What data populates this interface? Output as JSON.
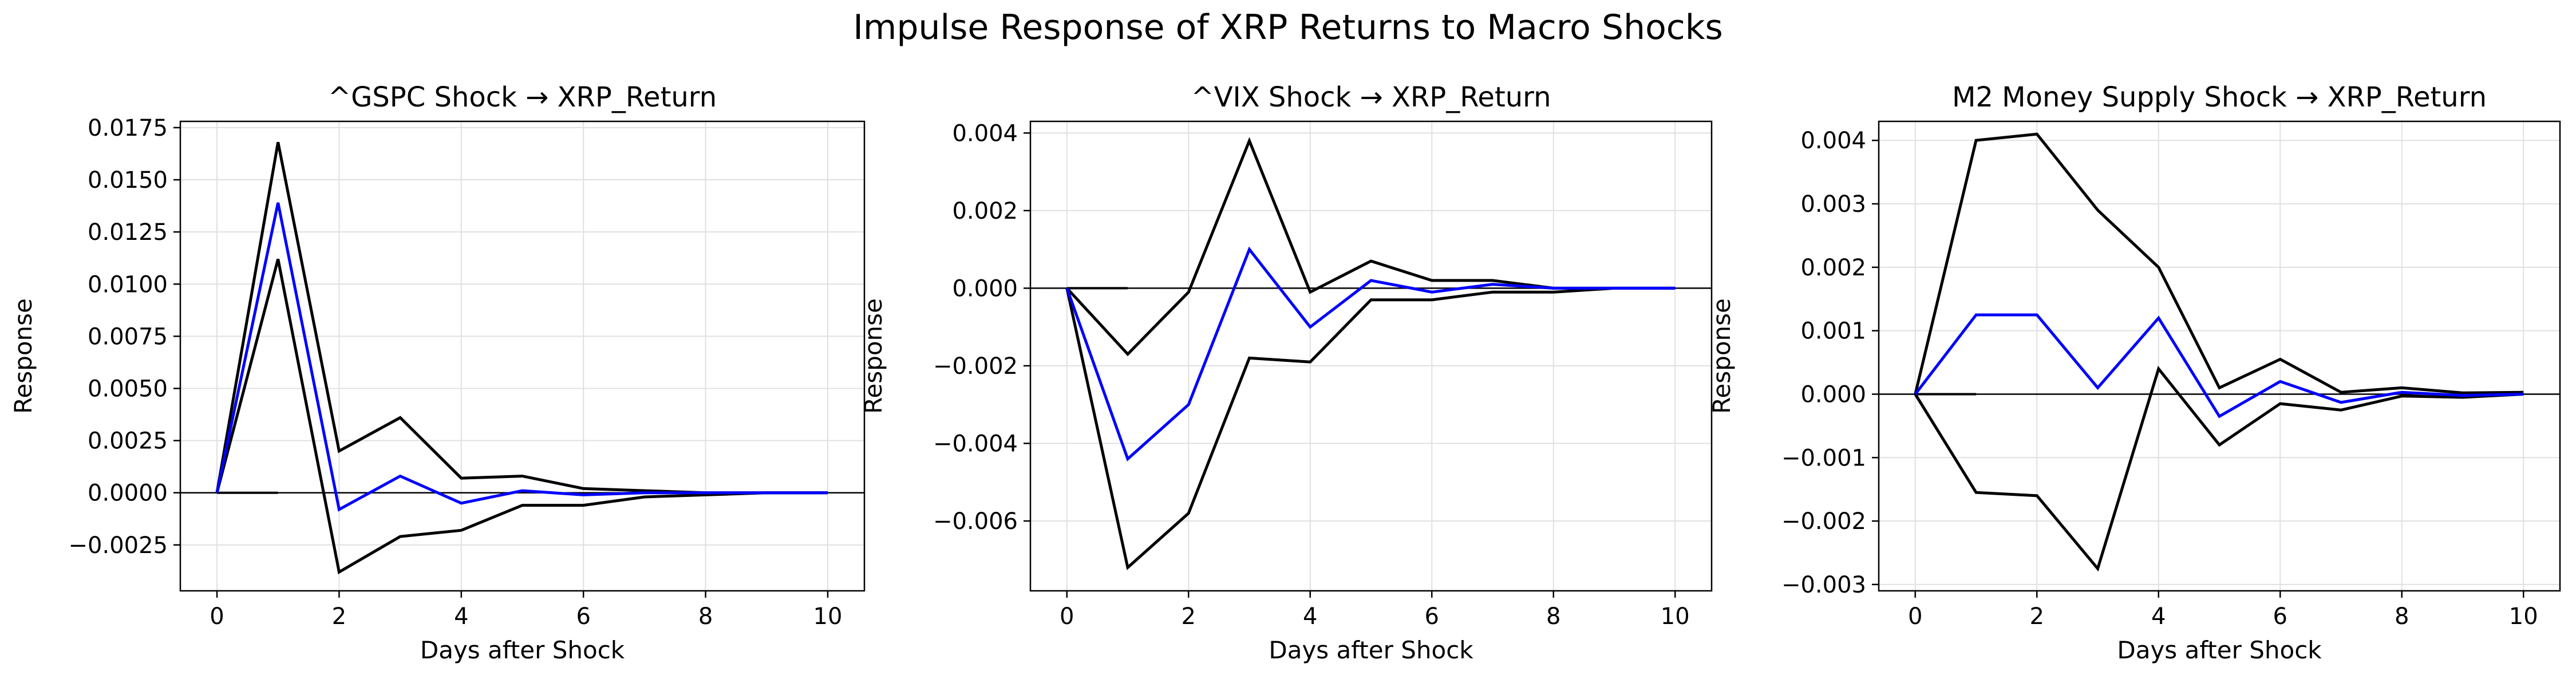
{
  "figure": {
    "suptitle": "Impulse Response of XRP Returns to Macro Shocks"
  },
  "colors": {
    "response": "#0000ff",
    "bounds": "#000000",
    "zero_line": "#000000",
    "grid": "#e0e0e0"
  },
  "chart_data": [
    {
      "type": "line",
      "title": "^GSPC Shock → XRP_Return",
      "xlabel": "Days after Shock",
      "ylabel": "Response",
      "xlim": [
        -0.6,
        10.6
      ],
      "ylim": [
        -0.0047,
        0.0178
      ],
      "xticks": [
        0,
        2,
        4,
        6,
        8,
        10
      ],
      "xtick_labels": [
        "0",
        "2",
        "4",
        "6",
        "8",
        "10"
      ],
      "yticks": [
        -0.0025,
        0.0,
        0.0025,
        0.005,
        0.0075,
        0.01,
        0.0125,
        0.015,
        0.0175
      ],
      "ytick_labels": [
        "−0.0025",
        "0.0000",
        "0.0025",
        "0.0050",
        "0.0075",
        "0.0100",
        "0.0125",
        "0.0150",
        "0.0175"
      ],
      "grid": true,
      "x": [
        0,
        1,
        2,
        3,
        4,
        5,
        6,
        7,
        8,
        9,
        10
      ],
      "series": [
        {
          "role": "response",
          "values": [
            0.0,
            0.0139,
            -0.0008,
            0.0008,
            -0.0005,
            0.0001,
            -0.0001,
            0.0,
            0.0,
            0.0,
            0.0
          ]
        },
        {
          "role": "upper",
          "values": [
            0.0,
            0.0168,
            0.002,
            0.0036,
            0.0007,
            0.0008,
            0.0002,
            0.0001,
            0.0,
            0.0,
            0.0
          ]
        },
        {
          "role": "lower",
          "values": [
            0.0,
            0.0112,
            -0.0038,
            -0.0021,
            -0.0018,
            -0.0006,
            -0.0006,
            -0.0002,
            -0.0001,
            0.0,
            0.0
          ]
        }
      ],
      "zero_line_x": [
        0,
        1
      ]
    },
    {
      "type": "line",
      "title": "^VIX Shock → XRP_Return",
      "xlabel": "Days after Shock",
      "ylabel": "Response",
      "xlim": [
        -0.6,
        10.6
      ],
      "ylim": [
        -0.0078,
        0.0043
      ],
      "xticks": [
        0,
        2,
        4,
        6,
        8,
        10
      ],
      "xtick_labels": [
        "0",
        "2",
        "4",
        "6",
        "8",
        "10"
      ],
      "yticks": [
        -0.006,
        -0.004,
        -0.002,
        0.0,
        0.002,
        0.004
      ],
      "ytick_labels": [
        "−0.006",
        "−0.004",
        "−0.002",
        "0.000",
        "0.002",
        "0.004"
      ],
      "grid": true,
      "x": [
        0,
        1,
        2,
        3,
        4,
        5,
        6,
        7,
        8,
        9,
        10
      ],
      "series": [
        {
          "role": "response",
          "values": [
            0.0,
            -0.0044,
            -0.003,
            0.001,
            -0.001,
            0.0002,
            -0.0001,
            0.0001,
            0.0,
            0.0,
            0.0
          ]
        },
        {
          "role": "upper",
          "values": [
            0.0,
            -0.0017,
            -0.0001,
            0.0038,
            -0.0001,
            0.0007,
            0.0002,
            0.0002,
            0.0,
            0.0,
            0.0
          ]
        },
        {
          "role": "lower",
          "values": [
            0.0,
            -0.0072,
            -0.0058,
            -0.0018,
            -0.0019,
            -0.0003,
            -0.0003,
            -0.0001,
            -0.0001,
            0.0,
            0.0
          ]
        }
      ],
      "zero_line_x": [
        0,
        1
      ]
    },
    {
      "type": "line",
      "title": "M2 Money Supply Shock → XRP_Return",
      "xlabel": "Days after Shock",
      "ylabel": "Response",
      "xlim": [
        -0.6,
        10.6
      ],
      "ylim": [
        -0.0031,
        0.0043
      ],
      "xticks": [
        0,
        2,
        4,
        6,
        8,
        10
      ],
      "xtick_labels": [
        "0",
        "2",
        "4",
        "6",
        "8",
        "10"
      ],
      "yticks": [
        -0.003,
        -0.002,
        -0.001,
        0.0,
        0.001,
        0.002,
        0.003,
        0.004
      ],
      "ytick_labels": [
        "−0.003",
        "−0.002",
        "−0.001",
        "0.000",
        "0.001",
        "0.002",
        "0.003",
        "0.004"
      ],
      "grid": true,
      "x": [
        0,
        1,
        2,
        3,
        4,
        5,
        6,
        7,
        8,
        9,
        10
      ],
      "series": [
        {
          "role": "response",
          "values": [
            0.0,
            0.00125,
            0.00125,
            0.0001,
            0.0012,
            -0.00035,
            0.0002,
            -0.00013,
            3e-05,
            -2e-05,
            0.0
          ]
        },
        {
          "role": "upper",
          "values": [
            0.0,
            0.004,
            0.0041,
            0.0029,
            0.002,
            0.0001,
            0.00055,
            3e-05,
            0.0001,
            2e-05,
            3e-05
          ]
        },
        {
          "role": "lower",
          "values": [
            0.0,
            -0.00155,
            -0.0016,
            -0.00275,
            0.0004,
            -0.0008,
            -0.00015,
            -0.00025,
            -3e-05,
            -5e-05,
            0.0
          ]
        }
      ],
      "zero_line_x": [
        0,
        1
      ]
    }
  ]
}
